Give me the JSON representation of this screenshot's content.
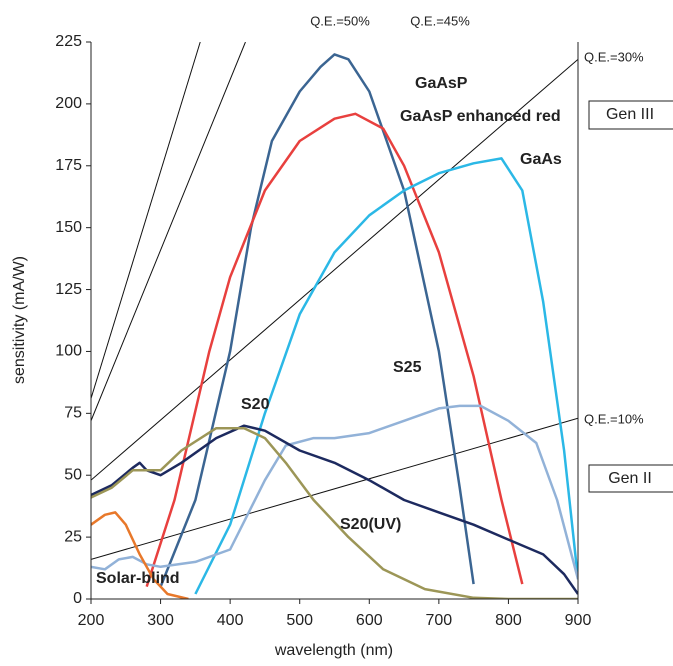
{
  "chart_data": {
    "type": "line",
    "x_label": "wavelength (nm)",
    "y_label": "sensitivity (mA/W)",
    "xlim": [
      200,
      900
    ],
    "ylim": [
      0,
      225
    ],
    "xticks": [
      200,
      300,
      400,
      500,
      600,
      700,
      800,
      900
    ],
    "yticks": [
      0,
      25,
      50,
      75,
      100,
      125,
      150,
      175,
      200,
      225
    ],
    "grid": false,
    "series": [
      {
        "name": "GaAsP",
        "color": "#3b6592",
        "x": [
          300,
          350,
          400,
          430,
          460,
          500,
          530,
          550,
          570,
          600,
          650,
          700,
          730,
          750
        ],
        "values": [
          5,
          40,
          100,
          150,
          185,
          205,
          215,
          220,
          218,
          205,
          165,
          100,
          45,
          6
        ]
      },
      {
        "name": "GaAsP enhanced red",
        "color": "#e8403e",
        "x": [
          280,
          320,
          370,
          400,
          450,
          500,
          550,
          580,
          620,
          650,
          700,
          750,
          790,
          820
        ],
        "values": [
          5,
          40,
          100,
          130,
          165,
          185,
          194,
          196,
          190,
          175,
          140,
          90,
          40,
          6
        ]
      },
      {
        "name": "GaAs",
        "color": "#2bb8e6",
        "x": [
          350,
          400,
          450,
          500,
          550,
          600,
          650,
          700,
          750,
          790,
          820,
          850,
          880,
          900
        ],
        "values": [
          2,
          30,
          75,
          115,
          140,
          155,
          165,
          172,
          176,
          178,
          165,
          120,
          60,
          8
        ]
      },
      {
        "name": "S25",
        "color": "#92b2d8",
        "x": [
          200,
          220,
          240,
          260,
          280,
          300,
          350,
          400,
          450,
          480,
          520,
          550,
          600,
          650,
          700,
          730,
          760,
          800,
          840,
          870,
          900
        ],
        "values": [
          13,
          12,
          16,
          17,
          14,
          13,
          15,
          20,
          48,
          62,
          65,
          65,
          67,
          72,
          77,
          78,
          78,
          72,
          63,
          40,
          8
        ]
      },
      {
        "name": "S20",
        "color": "#1d2a5f",
        "x": [
          200,
          230,
          260,
          270,
          280,
          300,
          330,
          380,
          420,
          450,
          500,
          550,
          600,
          650,
          700,
          750,
          800,
          850,
          880,
          900
        ],
        "values": [
          42,
          46,
          53,
          55,
          52,
          50,
          55,
          65,
          70,
          68,
          60,
          55,
          48,
          40,
          35,
          30,
          24,
          18,
          10,
          2
        ]
      },
      {
        "name": "S20(UV)",
        "color": "#9c9657",
        "x": [
          200,
          230,
          260,
          300,
          330,
          380,
          420,
          450,
          480,
          520,
          570,
          620,
          680,
          750,
          800,
          900
        ],
        "values": [
          41,
          45,
          52,
          52,
          60,
          69,
          69,
          65,
          55,
          40,
          25,
          12,
          4,
          0.5,
          0,
          0
        ]
      },
      {
        "name": "Solar-blind",
        "color": "#e8782a",
        "x": [
          200,
          220,
          235,
          250,
          270,
          290,
          310,
          340
        ],
        "values": [
          30,
          34,
          35,
          30,
          18,
          8,
          2,
          0
        ]
      }
    ],
    "reference_lines": [
      {
        "label": "Q.E.=50%",
        "x": [
          200,
          357
        ],
        "values": [
          81,
          225
        ]
      },
      {
        "label": "Q.E.=45%",
        "x": [
          200,
          422
        ],
        "values": [
          72,
          225
        ]
      },
      {
        "label": "Q.E.=30%",
        "x": [
          200,
          900
        ],
        "values": [
          48,
          218
        ]
      },
      {
        "label": "Q.E.=10%",
        "x": [
          200,
          900
        ],
        "values": [
          16,
          73
        ]
      }
    ],
    "annotations": [
      "Gen III",
      "Gen II"
    ]
  }
}
